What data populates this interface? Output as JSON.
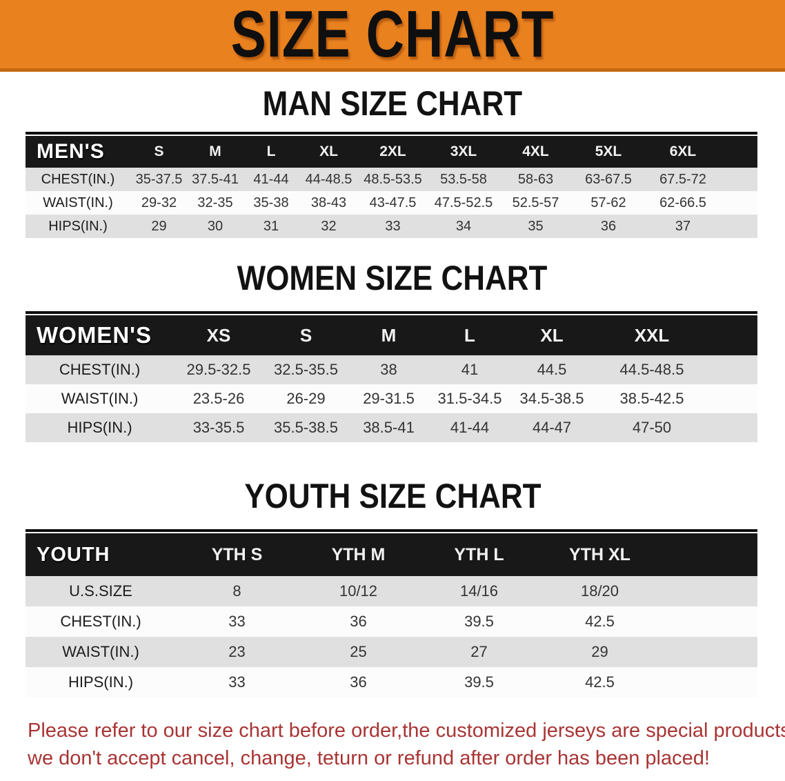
{
  "banner": {
    "title": "SIZE CHART"
  },
  "men": {
    "heading": "MAN SIZE CHART",
    "header_label": "MEN'S",
    "columns": [
      "S",
      "M",
      "L",
      "XL",
      "2XL",
      "3XL",
      "4XL",
      "5XL",
      "6XL"
    ],
    "rows": [
      {
        "label": "CHEST(IN.)",
        "values": [
          "35-37.5",
          "37.5-41",
          "41-44",
          "44-48.5",
          "48.5-53.5",
          "53.5-58",
          "58-63",
          "63-67.5",
          "67.5-72"
        ]
      },
      {
        "label": "WAIST(IN.)",
        "values": [
          "29-32",
          "32-35",
          "35-38",
          "38-43",
          "43-47.5",
          "47.5-52.5",
          "52.5-57",
          "57-62",
          "62-66.5"
        ]
      },
      {
        "label": "HIPS(IN.)",
        "values": [
          "29",
          "30",
          "31",
          "32",
          "33",
          "34",
          "35",
          "36",
          "37"
        ]
      }
    ]
  },
  "women": {
    "heading": "WOMEN SIZE CHART",
    "header_label": "WOMEN'S",
    "columns": [
      "XS",
      "S",
      "M",
      "L",
      "XL",
      "XXL"
    ],
    "rows": [
      {
        "label": "CHEST(IN.)",
        "values": [
          "29.5-32.5",
          "32.5-35.5",
          "38",
          "41",
          "44.5",
          "44.5-48.5"
        ]
      },
      {
        "label": "WAIST(IN.)",
        "values": [
          "23.5-26",
          "26-29",
          "29-31.5",
          "31.5-34.5",
          "34.5-38.5",
          "38.5-42.5"
        ]
      },
      {
        "label": "HIPS(IN.)",
        "values": [
          "33-35.5",
          "35.5-38.5",
          "38.5-41",
          "41-44",
          "44-47",
          "47-50"
        ]
      }
    ]
  },
  "youth": {
    "heading": "YOUTH SIZE CHART",
    "header_label": "YOUTH",
    "columns": [
      "YTH S",
      "YTH M",
      "YTH L",
      "YTH XL"
    ],
    "rows": [
      {
        "label": "U.S.SIZE",
        "values": [
          "8",
          "10/12",
          "14/16",
          "18/20"
        ]
      },
      {
        "label": "CHEST(IN.)",
        "values": [
          "33",
          "36",
          "39.5",
          "42.5"
        ]
      },
      {
        "label": "WAIST(IN.)",
        "values": [
          "23",
          "25",
          "27",
          "29"
        ]
      },
      {
        "label": "HIPS(IN.)",
        "values": [
          "33",
          "36",
          "39.5",
          "42.5"
        ]
      }
    ]
  },
  "footnote": {
    "line1": "Please refer to our size chart before order,the customized jerseys are special products,",
    "line2": "we don't accept cancel, change, teturn or refund after order has been placed!"
  },
  "colors": {
    "banner_bg": "#E8811E",
    "banner_border": "#C4690F",
    "header_bar": "#181818",
    "row_gray": "#E0E0E0",
    "row_white": "#FCFCFC",
    "footnote_red": "#A93434"
  }
}
